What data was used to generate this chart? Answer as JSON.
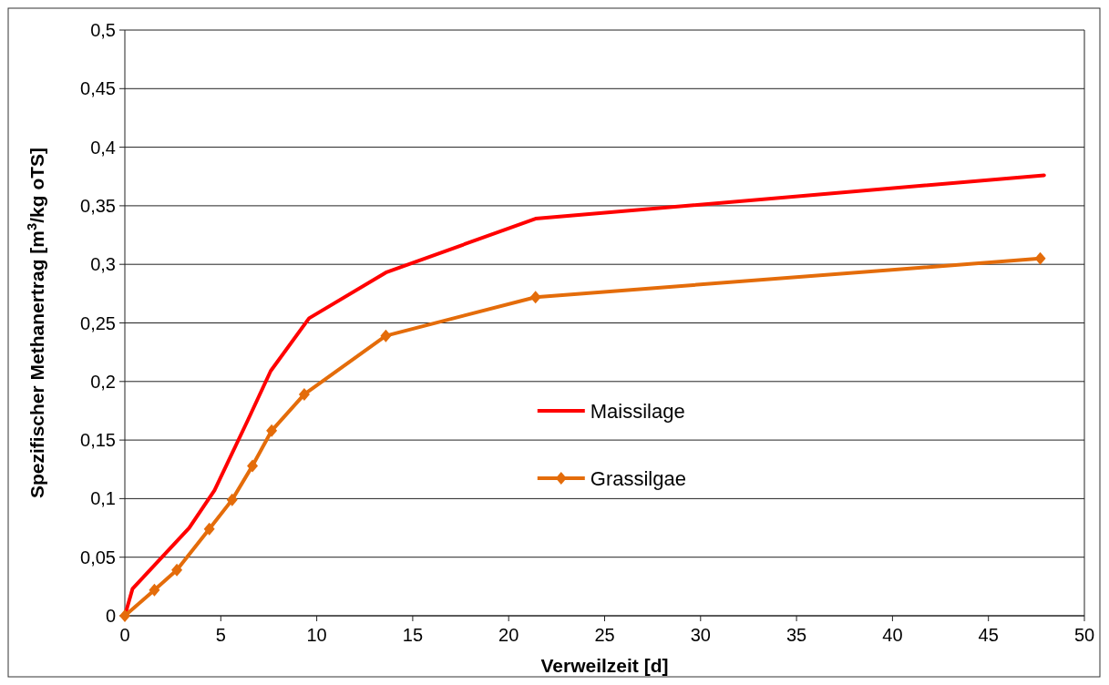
{
  "chart_data": {
    "type": "line",
    "xlabel": "Verweilzeit [d]",
    "ylabel": "Spezifischer Methanertrag [m$^{3}$/kg oTS]",
    "xlim": [
      0,
      50
    ],
    "xticks": [
      0,
      5,
      10,
      15,
      20,
      25,
      30,
      35,
      40,
      45,
      50
    ],
    "ylim": [
      0,
      0.5
    ],
    "yticks": [
      {
        "value": 0,
        "label": "0"
      },
      {
        "value": 0.05,
        "label": "0,05"
      },
      {
        "value": 0.1,
        "label": "0,1"
      },
      {
        "value": 0.15,
        "label": "0,15"
      },
      {
        "value": 0.2,
        "label": "0,2"
      },
      {
        "value": 0.25,
        "label": "0,25"
      },
      {
        "value": 0.3,
        "label": "0,3"
      },
      {
        "value": 0.35,
        "label": "0,35"
      },
      {
        "value": 0.4,
        "label": "0,4"
      },
      {
        "value": 0.45,
        "label": "0,45"
      },
      {
        "value": 0.5,
        "label": "0,5"
      }
    ],
    "grid": "y",
    "legend": "right",
    "series": [
      {
        "name": "Maissilage",
        "color": "#ff0000",
        "marker": "none",
        "x": [
          0,
          0.4,
          3.35,
          4.67,
          6.41,
          7.6,
          9.6,
          13.6,
          21.4,
          47.9
        ],
        "values": [
          0,
          0.023,
          0.075,
          0.107,
          0.167,
          0.209,
          0.254,
          0.293,
          0.339,
          0.376
        ]
      },
      {
        "name": "Grassilgae",
        "color": "#e46c0a",
        "marker": "diamond",
        "x": [
          0,
          1.54,
          2.71,
          4.4,
          5.59,
          6.65,
          7.65,
          9.35,
          13.6,
          21.4,
          47.7
        ],
        "values": [
          0,
          0.022,
          0.039,
          0.074,
          0.099,
          0.128,
          0.158,
          0.189,
          0.239,
          0.272,
          0.305
        ]
      }
    ]
  }
}
